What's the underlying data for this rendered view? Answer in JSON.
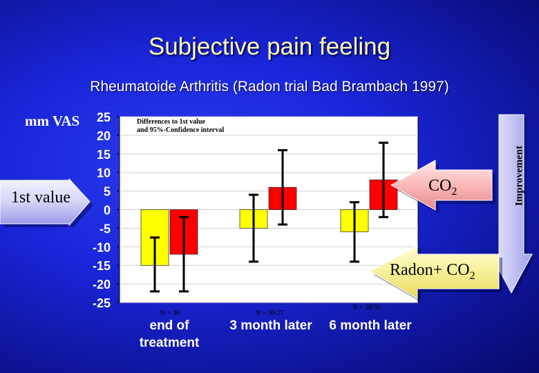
{
  "title": "Subjective pain feeling",
  "subtitle": "Rheumatoide Arthritis (Radon trial Bad Brambach 1997)",
  "reference_label": "1st value",
  "improvement_label": "Improvement",
  "chart_data": {
    "type": "bar",
    "ylabel": "mm VAS",
    "ylim": [
      -25,
      25
    ],
    "yticks": [
      "25",
      "20",
      "15",
      "10",
      "5",
      "0",
      "-5",
      "-10",
      "-15",
      "-20",
      "-25"
    ],
    "note_lines": [
      "Differences to 1st value",
      "and 95%-Confidence interval"
    ],
    "categories": [
      "end of treatment",
      "3 month later",
      "6 month later"
    ],
    "sample_sizes": [
      "N = 30",
      "N = 30/27",
      "N = 28/30"
    ],
    "series": [
      {
        "name": "Radon+ CO2",
        "color": "#ffff00",
        "values": [
          -15,
          -5,
          -6
        ],
        "ci_low": [
          -22,
          -14,
          -14
        ],
        "ci_high": [
          -7.5,
          4,
          2
        ]
      },
      {
        "name": "CO2",
        "color": "#ff0000",
        "values": [
          -12,
          6,
          8
        ],
        "ci_low": [
          -22,
          -4,
          -2
        ],
        "ci_high": [
          -2,
          16,
          18
        ]
      }
    ],
    "series_label_main": [
      "Radon+ CO",
      "CO"
    ],
    "series_label_sub": [
      "2",
      "2"
    ]
  }
}
